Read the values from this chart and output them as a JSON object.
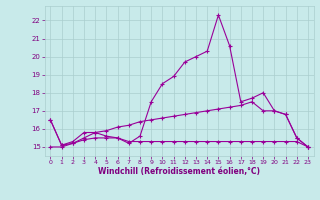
{
  "x": [
    0,
    1,
    2,
    3,
    4,
    5,
    6,
    7,
    8,
    9,
    10,
    11,
    12,
    13,
    14,
    15,
    16,
    17,
    18,
    19,
    20,
    21,
    22,
    23
  ],
  "line1": [
    16.5,
    15.1,
    15.3,
    15.8,
    15.8,
    15.6,
    15.5,
    15.2,
    15.6,
    17.5,
    18.5,
    18.9,
    19.7,
    20.0,
    20.3,
    22.3,
    20.6,
    17.5,
    17.7,
    18.0,
    17.0,
    16.8,
    15.5,
    15.0
  ],
  "line2": [
    15.0,
    15.0,
    15.2,
    15.4,
    15.5,
    15.5,
    15.5,
    15.3,
    15.3,
    15.3,
    15.3,
    15.3,
    15.3,
    15.3,
    15.3,
    15.3,
    15.3,
    15.3,
    15.3,
    15.3,
    15.3,
    15.3,
    15.3,
    15.0
  ],
  "line3": [
    16.5,
    15.1,
    15.2,
    15.5,
    15.8,
    15.9,
    16.1,
    16.2,
    16.4,
    16.5,
    16.6,
    16.7,
    16.8,
    16.9,
    17.0,
    17.1,
    17.2,
    17.3,
    17.5,
    17.0,
    17.0,
    16.8,
    15.5,
    15.0
  ],
  "line_color": "#990099",
  "bg_color": "#c8eaea",
  "grid_color": "#aacece",
  "xlabel": "Windchill (Refroidissement éolien,°C)",
  "xlabel_color": "#800080",
  "tick_color": "#800080",
  "ylim": [
    14.5,
    22.8
  ],
  "yticks": [
    15,
    16,
    17,
    18,
    19,
    20,
    21,
    22
  ],
  "xlim": [
    -0.5,
    23.5
  ],
  "xticks": [
    0,
    1,
    2,
    3,
    4,
    5,
    6,
    7,
    8,
    9,
    10,
    11,
    12,
    13,
    14,
    15,
    16,
    17,
    18,
    19,
    20,
    21,
    22,
    23
  ]
}
